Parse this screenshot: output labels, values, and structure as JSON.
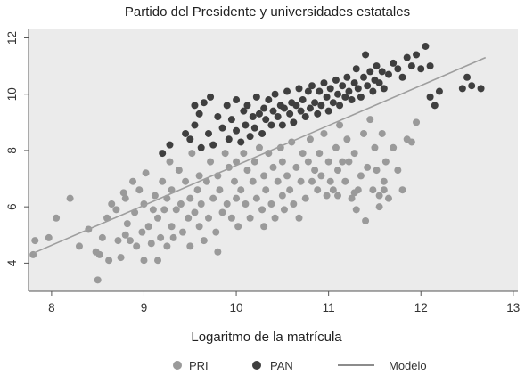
{
  "chart_data": {
    "type": "scatter",
    "title": "Partido del Presidente y universidades estatales",
    "xlabel": "Logaritmo de la matrícula",
    "ylabel": "",
    "xlim": [
      7.75,
      13.05
    ],
    "ylim": [
      3.0,
      12.3
    ],
    "xticks": [
      8,
      9,
      10,
      11,
      12,
      13
    ],
    "yticks": [
      4,
      6,
      8,
      10,
      12
    ],
    "grid": false,
    "legend_placement": "bottom",
    "colors": {
      "PRI": "#9a9a9a",
      "PAN": "#3f3f3f",
      "Modelo": "#9e9e9e",
      "background": "#ebebeb"
    },
    "series": [
      {
        "name": "PRI",
        "kind": "points",
        "points": [
          [
            7.8,
            4.3
          ],
          [
            7.82,
            4.8
          ],
          [
            7.97,
            4.9
          ],
          [
            8.05,
            5.6
          ],
          [
            8.2,
            6.3
          ],
          [
            8.3,
            4.6
          ],
          [
            8.4,
            5.2
          ],
          [
            8.48,
            4.4
          ],
          [
            8.5,
            3.4
          ],
          [
            8.52,
            4.3
          ],
          [
            8.55,
            4.9
          ],
          [
            8.6,
            5.6
          ],
          [
            8.62,
            4.1
          ],
          [
            8.65,
            6.1
          ],
          [
            8.7,
            5.9
          ],
          [
            8.72,
            4.8
          ],
          [
            8.75,
            4.2
          ],
          [
            8.78,
            6.5
          ],
          [
            8.8,
            5.0
          ],
          [
            8.8,
            6.3
          ],
          [
            8.82,
            5.4
          ],
          [
            8.85,
            4.8
          ],
          [
            8.88,
            6.9
          ],
          [
            8.9,
            5.8
          ],
          [
            8.92,
            4.6
          ],
          [
            8.95,
            6.6
          ],
          [
            8.98,
            5.1
          ],
          [
            9.0,
            4.1
          ],
          [
            9.0,
            6.1
          ],
          [
            9.02,
            7.2
          ],
          [
            9.05,
            5.3
          ],
          [
            9.08,
            4.7
          ],
          [
            9.1,
            5.9
          ],
          [
            9.12,
            6.4
          ],
          [
            9.15,
            4.1
          ],
          [
            9.15,
            5.6
          ],
          [
            9.18,
            4.9
          ],
          [
            9.2,
            6.9
          ],
          [
            9.22,
            5.9
          ],
          [
            9.25,
            4.6
          ],
          [
            9.25,
            6.3
          ],
          [
            9.28,
            7.6
          ],
          [
            9.3,
            5.3
          ],
          [
            9.3,
            6.6
          ],
          [
            9.32,
            4.9
          ],
          [
            9.35,
            5.9
          ],
          [
            9.38,
            7.3
          ],
          [
            9.4,
            6.1
          ],
          [
            9.42,
            5.1
          ],
          [
            9.45,
            6.9
          ],
          [
            9.48,
            5.6
          ],
          [
            9.5,
            4.6
          ],
          [
            9.5,
            6.3
          ],
          [
            9.52,
            7.9
          ],
          [
            9.55,
            5.8
          ],
          [
            9.58,
            6.6
          ],
          [
            9.6,
            5.3
          ],
          [
            9.6,
            7.1
          ],
          [
            9.62,
            6.1
          ],
          [
            9.65,
            4.8
          ],
          [
            9.68,
            6.9
          ],
          [
            9.7,
            5.6
          ],
          [
            9.72,
            7.6
          ],
          [
            9.75,
            6.3
          ],
          [
            9.78,
            5.1
          ],
          [
            9.8,
            4.4
          ],
          [
            9.8,
            7.1
          ],
          [
            9.82,
            6.6
          ],
          [
            9.85,
            5.8
          ],
          [
            9.88,
            7.9
          ],
          [
            9.9,
            6.1
          ],
          [
            9.92,
            7.4
          ],
          [
            9.95,
            5.6
          ],
          [
            9.98,
            6.9
          ],
          [
            10.0,
            6.3
          ],
          [
            10.0,
            7.6
          ],
          [
            10.02,
            5.3
          ],
          [
            10.05,
            6.6
          ],
          [
            10.08,
            7.9
          ],
          [
            10.1,
            6.1
          ],
          [
            10.12,
            7.3
          ],
          [
            10.15,
            5.6
          ],
          [
            10.18,
            6.9
          ],
          [
            10.2,
            7.6
          ],
          [
            10.22,
            6.3
          ],
          [
            10.25,
            8.1
          ],
          [
            10.28,
            5.9
          ],
          [
            10.3,
            7.1
          ],
          [
            10.3,
            5.3
          ],
          [
            10.32,
            6.6
          ],
          [
            10.35,
            7.9
          ],
          [
            10.38,
            6.1
          ],
          [
            10.4,
            7.4
          ],
          [
            10.42,
            5.6
          ],
          [
            10.45,
            6.9
          ],
          [
            10.48,
            8.1
          ],
          [
            10.5,
            6.4
          ],
          [
            10.5,
            7.6
          ],
          [
            10.52,
            5.9
          ],
          [
            10.55,
            7.1
          ],
          [
            10.58,
            6.6
          ],
          [
            10.6,
            8.3
          ],
          [
            10.62,
            6.1
          ],
          [
            10.65,
            7.4
          ],
          [
            10.68,
            5.6
          ],
          [
            10.7,
            6.9
          ],
          [
            10.72,
            7.9
          ],
          [
            10.75,
            6.3
          ],
          [
            10.78,
            7.6
          ],
          [
            10.8,
            8.4
          ],
          [
            10.82,
            6.9
          ],
          [
            10.85,
            7.3
          ],
          [
            10.88,
            6.6
          ],
          [
            10.9,
            7.9
          ],
          [
            10.92,
            7.1
          ],
          [
            10.95,
            8.6
          ],
          [
            10.98,
            6.4
          ],
          [
            11.0,
            7.6
          ],
          [
            11.02,
            6.9
          ],
          [
            11.05,
            6.6
          ],
          [
            11.08,
            8.1
          ],
          [
            11.1,
            7.3
          ],
          [
            11.12,
            8.9
          ],
          [
            11.15,
            7.6
          ],
          [
            11.18,
            6.9
          ],
          [
            11.2,
            8.4
          ],
          [
            11.22,
            7.6
          ],
          [
            11.25,
            6.3
          ],
          [
            11.28,
            7.9
          ],
          [
            11.3,
            5.9
          ],
          [
            11.32,
            6.6
          ],
          [
            11.35,
            7.1
          ],
          [
            11.38,
            8.6
          ],
          [
            11.4,
            5.5
          ],
          [
            11.42,
            7.4
          ],
          [
            11.45,
            9.1
          ],
          [
            11.48,
            6.6
          ],
          [
            11.5,
            8.1
          ],
          [
            11.52,
            7.3
          ],
          [
            11.55,
            6.4
          ],
          [
            11.58,
            8.6
          ],
          [
            11.6,
            6.9
          ],
          [
            11.62,
            7.6
          ],
          [
            11.65,
            6.3
          ],
          [
            11.7,
            8.1
          ],
          [
            11.75,
            7.3
          ],
          [
            11.8,
            6.6
          ],
          [
            11.85,
            8.4
          ],
          [
            11.9,
            8.3
          ],
          [
            11.95,
            9.0
          ],
          [
            11.6,
            6.6
          ],
          [
            11.55,
            6.0
          ],
          [
            11.28,
            6.5
          ],
          [
            11.1,
            6.4
          ]
        ]
      },
      {
        "name": "PAN",
        "kind": "points",
        "points": [
          [
            9.2,
            7.9
          ],
          [
            9.28,
            8.2
          ],
          [
            9.45,
            8.6
          ],
          [
            9.5,
            8.4
          ],
          [
            9.55,
            8.9
          ],
          [
            9.55,
            9.6
          ],
          [
            9.6,
            9.3
          ],
          [
            9.62,
            8.1
          ],
          [
            9.65,
            9.7
          ],
          [
            9.7,
            8.6
          ],
          [
            9.72,
            9.9
          ],
          [
            9.75,
            8.2
          ],
          [
            9.8,
            9.2
          ],
          [
            9.85,
            8.8
          ],
          [
            9.9,
            9.6
          ],
          [
            9.92,
            8.4
          ],
          [
            9.95,
            9.1
          ],
          [
            10.0,
            8.7
          ],
          [
            10.0,
            9.8
          ],
          [
            10.05,
            8.3
          ],
          [
            10.08,
            9.4
          ],
          [
            10.1,
            8.9
          ],
          [
            10.12,
            9.6
          ],
          [
            10.15,
            8.5
          ],
          [
            10.18,
            9.2
          ],
          [
            10.2,
            8.8
          ],
          [
            10.22,
            9.9
          ],
          [
            10.25,
            9.3
          ],
          [
            10.28,
            8.6
          ],
          [
            10.3,
            9.5
          ],
          [
            10.32,
            9.1
          ],
          [
            10.35,
            9.8
          ],
          [
            10.38,
            8.9
          ],
          [
            10.4,
            9.4
          ],
          [
            10.42,
            10.0
          ],
          [
            10.45,
            9.2
          ],
          [
            10.48,
            9.6
          ],
          [
            10.5,
            8.9
          ],
          [
            10.52,
            9.5
          ],
          [
            10.55,
            10.1
          ],
          [
            10.58,
            9.3
          ],
          [
            10.6,
            9.7
          ],
          [
            10.62,
            9.0
          ],
          [
            10.65,
            9.6
          ],
          [
            10.68,
            10.2
          ],
          [
            10.7,
            9.4
          ],
          [
            10.72,
            9.8
          ],
          [
            10.75,
            9.2
          ],
          [
            10.78,
            10.1
          ],
          [
            10.8,
            9.5
          ],
          [
            10.82,
            10.3
          ],
          [
            10.85,
            9.7
          ],
          [
            10.88,
            9.3
          ],
          [
            10.9,
            10.1
          ],
          [
            10.92,
            9.6
          ],
          [
            10.95,
            10.4
          ],
          [
            10.98,
            9.9
          ],
          [
            11.0,
            9.4
          ],
          [
            11.02,
            10.2
          ],
          [
            11.05,
            9.7
          ],
          [
            11.08,
            10.5
          ],
          [
            11.1,
            10.0
          ],
          [
            11.12,
            9.6
          ],
          [
            11.15,
            10.3
          ],
          [
            11.18,
            9.9
          ],
          [
            11.2,
            10.6
          ],
          [
            11.22,
            10.1
          ],
          [
            11.25,
            9.8
          ],
          [
            11.28,
            10.4
          ],
          [
            11.3,
            10.9
          ],
          [
            11.32,
            10.2
          ],
          [
            11.35,
            9.9
          ],
          [
            11.38,
            10.6
          ],
          [
            11.4,
            11.4
          ],
          [
            11.42,
            10.3
          ],
          [
            11.45,
            10.8
          ],
          [
            11.48,
            10.1
          ],
          [
            11.5,
            10.5
          ],
          [
            11.52,
            11.0
          ],
          [
            11.55,
            10.4
          ],
          [
            11.58,
            10.8
          ],
          [
            11.6,
            10.2
          ],
          [
            11.65,
            10.7
          ],
          [
            11.7,
            11.1
          ],
          [
            11.75,
            10.9
          ],
          [
            11.8,
            10.6
          ],
          [
            11.85,
            11.3
          ],
          [
            11.9,
            11.0
          ],
          [
            11.95,
            11.4
          ],
          [
            12.0,
            10.9
          ],
          [
            12.05,
            11.7
          ],
          [
            12.1,
            9.9
          ],
          [
            12.15,
            9.6
          ],
          [
            12.2,
            10.1
          ],
          [
            12.45,
            10.2
          ],
          [
            12.5,
            10.6
          ],
          [
            12.55,
            10.3
          ],
          [
            12.65,
            10.2
          ],
          [
            12.1,
            11.0
          ]
        ]
      },
      {
        "name": "Modelo",
        "kind": "line",
        "points": [
          [
            7.8,
            4.35
          ],
          [
            12.7,
            11.3
          ]
        ]
      }
    ]
  }
}
